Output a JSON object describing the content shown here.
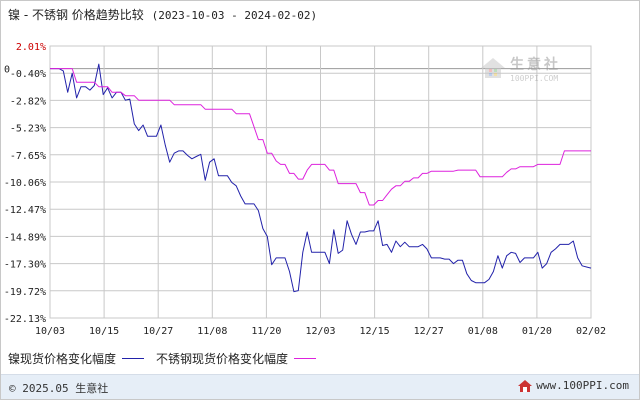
{
  "header": {
    "title": "镍 - 不锈钢 价格趋势比较",
    "date_range": "(2023-10-03 - 2024-02-02)"
  },
  "watermark": {
    "name": "生意社",
    "url": "100PPI.COM"
  },
  "legend": {
    "series1_label": "镍现货价格变化幅度",
    "series2_label": "不锈钢现货价格变化幅度"
  },
  "footer": {
    "copyright": "© 2025.05 生意社",
    "site": "www.100PPI.com"
  },
  "colors": {
    "nickel": "#2222aa",
    "stainless": "#dd22dd",
    "grid": "#c8c8c8",
    "zero_line": "#999999",
    "first_tick": "#cc0000"
  },
  "chart_data": {
    "type": "line",
    "title": "镍 - 不锈钢 价格趋势比较",
    "xlabel": "",
    "ylabel": "",
    "x_ticks": [
      "10/03",
      "10/15",
      "10/27",
      "11/08",
      "11/20",
      "12/03",
      "12/15",
      "12/27",
      "01/08",
      "01/20",
      "02/02"
    ],
    "y_ticks": [
      "2.01%",
      "-0.40%",
      "-2.82%",
      "-5.23%",
      "-7.65%",
      "-10.06%",
      "-12.47%",
      "-14.89%",
      "-17.30%",
      "-19.72%",
      "-22.13%"
    ],
    "ylim": [
      -22.13,
      2.01
    ],
    "grid": true,
    "legend_position": "bottom",
    "series": [
      {
        "name": "镍现货价格变化幅度",
        "color": "#2222aa",
        "points": [
          [
            "2023-10-03",
            0.0
          ],
          [
            "2023-10-04",
            0.0
          ],
          [
            "2023-10-05",
            0.0
          ],
          [
            "2023-10-06",
            -0.2
          ],
          [
            "2023-10-07",
            -2.1
          ],
          [
            "2023-10-08",
            -0.4
          ],
          [
            "2023-10-09",
            -2.6
          ],
          [
            "2023-10-10",
            -1.6
          ],
          [
            "2023-10-11",
            -1.6
          ],
          [
            "2023-10-12",
            -1.9
          ],
          [
            "2023-10-13",
            -1.5
          ],
          [
            "2023-10-14",
            0.4
          ],
          [
            "2023-10-15",
            -2.3
          ],
          [
            "2023-10-16",
            -1.7
          ],
          [
            "2023-10-17",
            -2.6
          ],
          [
            "2023-10-18",
            -2.1
          ],
          [
            "2023-10-19",
            -2.1
          ],
          [
            "2023-10-20",
            -2.8
          ],
          [
            "2023-10-21",
            -2.7
          ],
          [
            "2023-10-22",
            -4.9
          ],
          [
            "2023-10-23",
            -5.5
          ],
          [
            "2023-10-24",
            -5.0
          ],
          [
            "2023-10-25",
            -6.0
          ],
          [
            "2023-10-26",
            -6.0
          ],
          [
            "2023-10-27",
            -6.0
          ],
          [
            "2023-10-28",
            -5.0
          ],
          [
            "2023-10-29",
            -6.8
          ],
          [
            "2023-10-30",
            -8.3
          ],
          [
            "2023-10-31",
            -7.5
          ],
          [
            "2023-11-01",
            -7.3
          ],
          [
            "2023-11-02",
            -7.3
          ],
          [
            "2023-11-03",
            -7.7
          ],
          [
            "2023-11-04",
            -8.0
          ],
          [
            "2023-11-05",
            -7.8
          ],
          [
            "2023-11-06",
            -7.6
          ],
          [
            "2023-11-07",
            -9.9
          ],
          [
            "2023-11-08",
            -8.3
          ],
          [
            "2023-11-09",
            -8.0
          ],
          [
            "2023-11-10",
            -9.5
          ],
          [
            "2023-11-11",
            -9.5
          ],
          [
            "2023-11-12",
            -9.5
          ],
          [
            "2023-11-13",
            -10.1
          ],
          [
            "2023-11-14",
            -10.4
          ],
          [
            "2023-11-15",
            -11.3
          ],
          [
            "2023-11-16",
            -12.0
          ],
          [
            "2023-11-17",
            -12.0
          ],
          [
            "2023-11-18",
            -12.0
          ],
          [
            "2023-11-19",
            -12.6
          ],
          [
            "2023-11-20",
            -14.2
          ],
          [
            "2023-11-21",
            -14.9
          ],
          [
            "2023-11-22",
            -17.4
          ],
          [
            "2023-11-23",
            -16.8
          ],
          [
            "2023-11-24",
            -16.8
          ],
          [
            "2023-11-25",
            -16.8
          ],
          [
            "2023-11-26",
            -18.0
          ],
          [
            "2023-11-27",
            -19.8
          ],
          [
            "2023-11-28",
            -19.7
          ],
          [
            "2023-11-29",
            -16.3
          ],
          [
            "2023-11-30",
            -14.5
          ],
          [
            "2023-12-01",
            -16.3
          ],
          [
            "2023-12-02",
            -16.3
          ],
          [
            "2023-12-03",
            -16.3
          ],
          [
            "2023-12-04",
            -16.3
          ],
          [
            "2023-12-05",
            -17.3
          ],
          [
            "2023-12-06",
            -14.3
          ],
          [
            "2023-12-07",
            -16.4
          ],
          [
            "2023-12-08",
            -16.1
          ],
          [
            "2023-12-09",
            -13.5
          ],
          [
            "2023-12-10",
            -14.7
          ],
          [
            "2023-12-11",
            -15.6
          ],
          [
            "2023-12-12",
            -14.5
          ],
          [
            "2023-12-13",
            -14.5
          ],
          [
            "2023-12-14",
            -14.4
          ],
          [
            "2023-12-15",
            -14.4
          ],
          [
            "2023-12-16",
            -13.5
          ],
          [
            "2023-12-17",
            -15.7
          ],
          [
            "2023-12-18",
            -15.6
          ],
          [
            "2023-12-19",
            -16.3
          ],
          [
            "2023-12-20",
            -15.3
          ],
          [
            "2023-12-21",
            -15.8
          ],
          [
            "2023-12-22",
            -15.4
          ],
          [
            "2023-12-23",
            -15.8
          ],
          [
            "2023-12-24",
            -15.8
          ],
          [
            "2023-12-25",
            -15.8
          ],
          [
            "2023-12-26",
            -15.6
          ],
          [
            "2023-12-27",
            -16.0
          ],
          [
            "2023-12-28",
            -16.8
          ],
          [
            "2023-12-29",
            -16.8
          ],
          [
            "2023-12-30",
            -16.8
          ],
          [
            "2023-12-31",
            -16.9
          ],
          [
            "2024-01-01",
            -16.9
          ],
          [
            "2024-01-02",
            -17.3
          ],
          [
            "2024-01-03",
            -17.0
          ],
          [
            "2024-01-04",
            -17.0
          ],
          [
            "2024-01-05",
            -18.2
          ],
          [
            "2024-01-06",
            -18.8
          ],
          [
            "2024-01-07",
            -19.0
          ],
          [
            "2024-01-08",
            -19.0
          ],
          [
            "2024-01-09",
            -19.0
          ],
          [
            "2024-01-10",
            -18.7
          ],
          [
            "2024-01-11",
            -18.0
          ],
          [
            "2024-01-12",
            -16.6
          ],
          [
            "2024-01-13",
            -17.7
          ],
          [
            "2024-01-14",
            -16.6
          ],
          [
            "2024-01-15",
            -16.3
          ],
          [
            "2024-01-16",
            -16.4
          ],
          [
            "2024-01-17",
            -17.2
          ],
          [
            "2024-01-18",
            -16.8
          ],
          [
            "2024-01-19",
            -16.8
          ],
          [
            "2024-01-20",
            -16.8
          ],
          [
            "2024-01-21",
            -16.3
          ],
          [
            "2024-01-22",
            -17.7
          ],
          [
            "2024-01-23",
            -17.3
          ],
          [
            "2024-01-24",
            -16.3
          ],
          [
            "2024-01-25",
            -16.0
          ],
          [
            "2024-01-26",
            -15.6
          ],
          [
            "2024-01-27",
            -15.6
          ],
          [
            "2024-01-28",
            -15.6
          ],
          [
            "2024-01-29",
            -15.3
          ],
          [
            "2024-01-30",
            -16.8
          ],
          [
            "2024-01-31",
            -17.5
          ],
          [
            "2024-02-01",
            -17.6
          ],
          [
            "2024-02-02",
            -17.7
          ]
        ]
      },
      {
        "name": "不锈钢现货价格变化幅度",
        "color": "#dd22dd",
        "points": [
          [
            "2023-10-03",
            0.0
          ],
          [
            "2023-10-08",
            0.0
          ],
          [
            "2023-10-09",
            -1.2
          ],
          [
            "2023-10-13",
            -1.2
          ],
          [
            "2023-10-14",
            -1.6
          ],
          [
            "2023-10-16",
            -1.6
          ],
          [
            "2023-10-17",
            -2.1
          ],
          [
            "2023-10-19",
            -2.1
          ],
          [
            "2023-10-20",
            -2.4
          ],
          [
            "2023-10-22",
            -2.4
          ],
          [
            "2023-10-23",
            -2.8
          ],
          [
            "2023-10-30",
            -2.8
          ],
          [
            "2023-10-31",
            -3.2
          ],
          [
            "2023-11-06",
            -3.2
          ],
          [
            "2023-11-07",
            -3.6
          ],
          [
            "2023-11-13",
            -3.6
          ],
          [
            "2023-11-14",
            -4.0
          ],
          [
            "2023-11-17",
            -4.0
          ],
          [
            "2023-11-19",
            -6.3
          ],
          [
            "2023-11-20",
            -6.3
          ],
          [
            "2023-11-21",
            -7.5
          ],
          [
            "2023-11-22",
            -7.5
          ],
          [
            "2023-11-23",
            -8.2
          ],
          [
            "2023-11-24",
            -8.5
          ],
          [
            "2023-11-25",
            -8.5
          ],
          [
            "2023-11-26",
            -9.3
          ],
          [
            "2023-11-27",
            -9.3
          ],
          [
            "2023-11-28",
            -9.8
          ],
          [
            "2023-11-29",
            -9.8
          ],
          [
            "2023-11-30",
            -9.0
          ],
          [
            "2023-12-01",
            -8.5
          ],
          [
            "2023-12-04",
            -8.5
          ],
          [
            "2023-12-05",
            -9.0
          ],
          [
            "2023-12-06",
            -9.0
          ],
          [
            "2023-12-07",
            -10.2
          ],
          [
            "2023-12-11",
            -10.2
          ],
          [
            "2023-12-12",
            -11.0
          ],
          [
            "2023-12-13",
            -11.0
          ],
          [
            "2023-12-14",
            -12.1
          ],
          [
            "2023-12-15",
            -12.1
          ],
          [
            "2023-12-16",
            -11.7
          ],
          [
            "2023-12-17",
            -11.7
          ],
          [
            "2023-12-18",
            -11.2
          ],
          [
            "2023-12-19",
            -10.7
          ],
          [
            "2023-12-20",
            -10.4
          ],
          [
            "2023-12-21",
            -10.4
          ],
          [
            "2023-12-22",
            -10.0
          ],
          [
            "2023-12-23",
            -10.0
          ],
          [
            "2023-12-24",
            -9.7
          ],
          [
            "2023-12-25",
            -9.7
          ],
          [
            "2023-12-26",
            -9.3
          ],
          [
            "2023-12-27",
            -9.3
          ],
          [
            "2023-12-28",
            -9.1
          ],
          [
            "2024-01-02",
            -9.1
          ],
          [
            "2024-01-03",
            -9.0
          ],
          [
            "2024-01-07",
            -9.0
          ],
          [
            "2024-01-08",
            -9.6
          ],
          [
            "2024-01-13",
            -9.6
          ],
          [
            "2024-01-14",
            -9.2
          ],
          [
            "2024-01-15",
            -8.9
          ],
          [
            "2024-01-16",
            -8.9
          ],
          [
            "2024-01-17",
            -8.7
          ],
          [
            "2024-01-20",
            -8.7
          ],
          [
            "2024-01-21",
            -8.5
          ],
          [
            "2024-01-26",
            -8.5
          ],
          [
            "2024-01-27",
            -7.3
          ],
          [
            "2024-02-02",
            -7.3
          ]
        ]
      }
    ]
  }
}
